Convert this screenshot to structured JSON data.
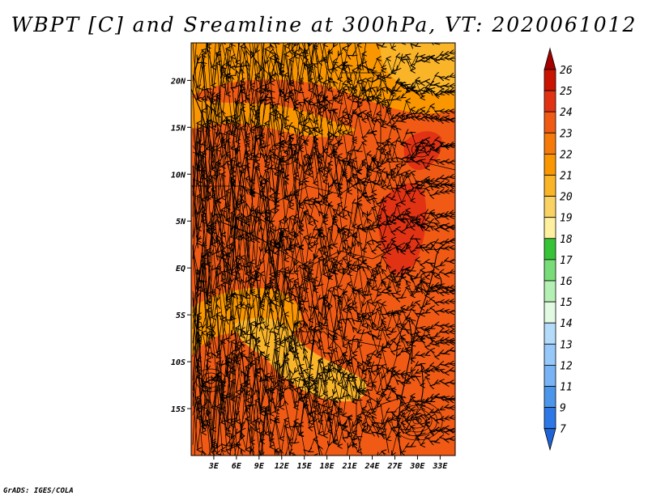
{
  "title": "WBPT [C] and Sreamline at 300hPa, VT: 2020061012",
  "credit": "GrADS: IGES/COLA",
  "map": {
    "lon_range": [
      0,
      35
    ],
    "lat_range": [
      -20,
      24
    ],
    "lon_ticks": [
      {
        "value": 3,
        "label": "3E"
      },
      {
        "value": 6,
        "label": "6E"
      },
      {
        "value": 9,
        "label": "9E"
      },
      {
        "value": 12,
        "label": "12E"
      },
      {
        "value": 15,
        "label": "15E"
      },
      {
        "value": 18,
        "label": "18E"
      },
      {
        "value": 21,
        "label": "21E"
      },
      {
        "value": 24,
        "label": "24E"
      },
      {
        "value": 27,
        "label": "27E"
      },
      {
        "value": 30,
        "label": "30E"
      },
      {
        "value": 33,
        "label": "33E"
      }
    ],
    "lat_ticks": [
      {
        "value": 20,
        "label": "20N"
      },
      {
        "value": 15,
        "label": "15N"
      },
      {
        "value": 10,
        "label": "10N"
      },
      {
        "value": 5,
        "label": "5N"
      },
      {
        "value": 0,
        "label": "EQ"
      },
      {
        "value": -5,
        "label": "5S"
      },
      {
        "value": -10,
        "label": "10S"
      },
      {
        "value": -15,
        "label": "15S"
      }
    ]
  },
  "colorbar": {
    "levels": [
      "26",
      "25",
      "24",
      "23",
      "22",
      "21",
      "20",
      "19",
      "18",
      "17",
      "16",
      "15",
      "14",
      "13",
      "12",
      "11",
      "9",
      "7"
    ],
    "colors": [
      "#a50000",
      "#c81400",
      "#e13214",
      "#f05a14",
      "#f57a0a",
      "#fa9600",
      "#fab428",
      "#fad264",
      "#fff0a0",
      "#37c337",
      "#78dc78",
      "#b4f0b4",
      "#e1fae1",
      "#b4dcfa",
      "#96c8fa",
      "#78b4f5",
      "#4b96eb",
      "#2d78e6",
      "#1e64d7"
    ]
  },
  "field_colors": {
    "base": "#f05a14",
    "warm_21": "#fa9600",
    "warm_20": "#fab428",
    "hot_24": "#e13214"
  }
}
